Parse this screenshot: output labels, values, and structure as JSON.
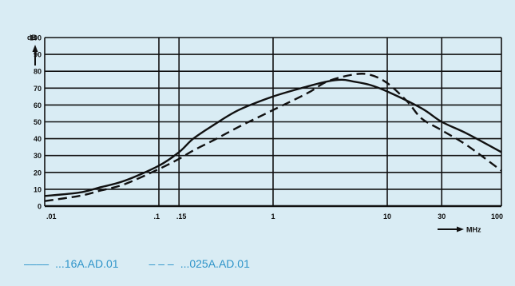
{
  "chart_data": {
    "type": "line",
    "xscale": "log",
    "xlim": [
      0.01,
      100
    ],
    "ylim": [
      0,
      100
    ],
    "xticks": [
      0.01,
      0.1,
      0.15,
      1,
      10,
      30,
      100
    ],
    "xtick_labels": [
      ".01",
      ".1",
      ".15",
      "1",
      "10",
      "30",
      "100"
    ],
    "yticks": [
      0,
      10,
      20,
      30,
      40,
      50,
      60,
      70,
      80,
      90,
      100
    ],
    "ytick_labels": [
      "0",
      "10",
      "20",
      "30",
      "40",
      "50",
      "60",
      "70",
      "80",
      "90",
      "100"
    ],
    "ylabel": "dB",
    "xlabel": "MHz",
    "grid": true,
    "series": [
      {
        "name": "...16A.AD.01",
        "style": "solid",
        "x": [
          0.01,
          0.02,
          0.03,
          0.05,
          0.1,
          0.15,
          0.2,
          0.3,
          0.5,
          1,
          2,
          3,
          4,
          5,
          7,
          10,
          20,
          30,
          50,
          100
        ],
        "y": [
          6,
          8,
          11,
          15,
          24,
          32,
          40,
          48,
          57,
          65,
          71,
          74,
          75,
          74,
          72,
          68,
          58,
          50,
          43,
          32
        ]
      },
      {
        "name": "...025A.AD.01",
        "style": "dashed",
        "x": [
          0.01,
          0.02,
          0.03,
          0.05,
          0.1,
          0.15,
          0.2,
          0.3,
          0.5,
          1,
          2,
          3,
          5,
          7,
          10,
          15,
          20,
          30,
          50,
          100
        ],
        "y": [
          3,
          6,
          9,
          13,
          22,
          28,
          33,
          39,
          47,
          57,
          67,
          74,
          78,
          78,
          73,
          62,
          52,
          45,
          36,
          21
        ]
      }
    ]
  },
  "legend": {
    "items": [
      {
        "sample": "––––",
        "label": "...16A.AD.01"
      },
      {
        "sample": "– – –",
        "label": "...025A.AD.01"
      }
    ]
  },
  "colors": {
    "background": "#d9ecf4",
    "ink": "#111111",
    "legend_text": "#2e94c9"
  }
}
